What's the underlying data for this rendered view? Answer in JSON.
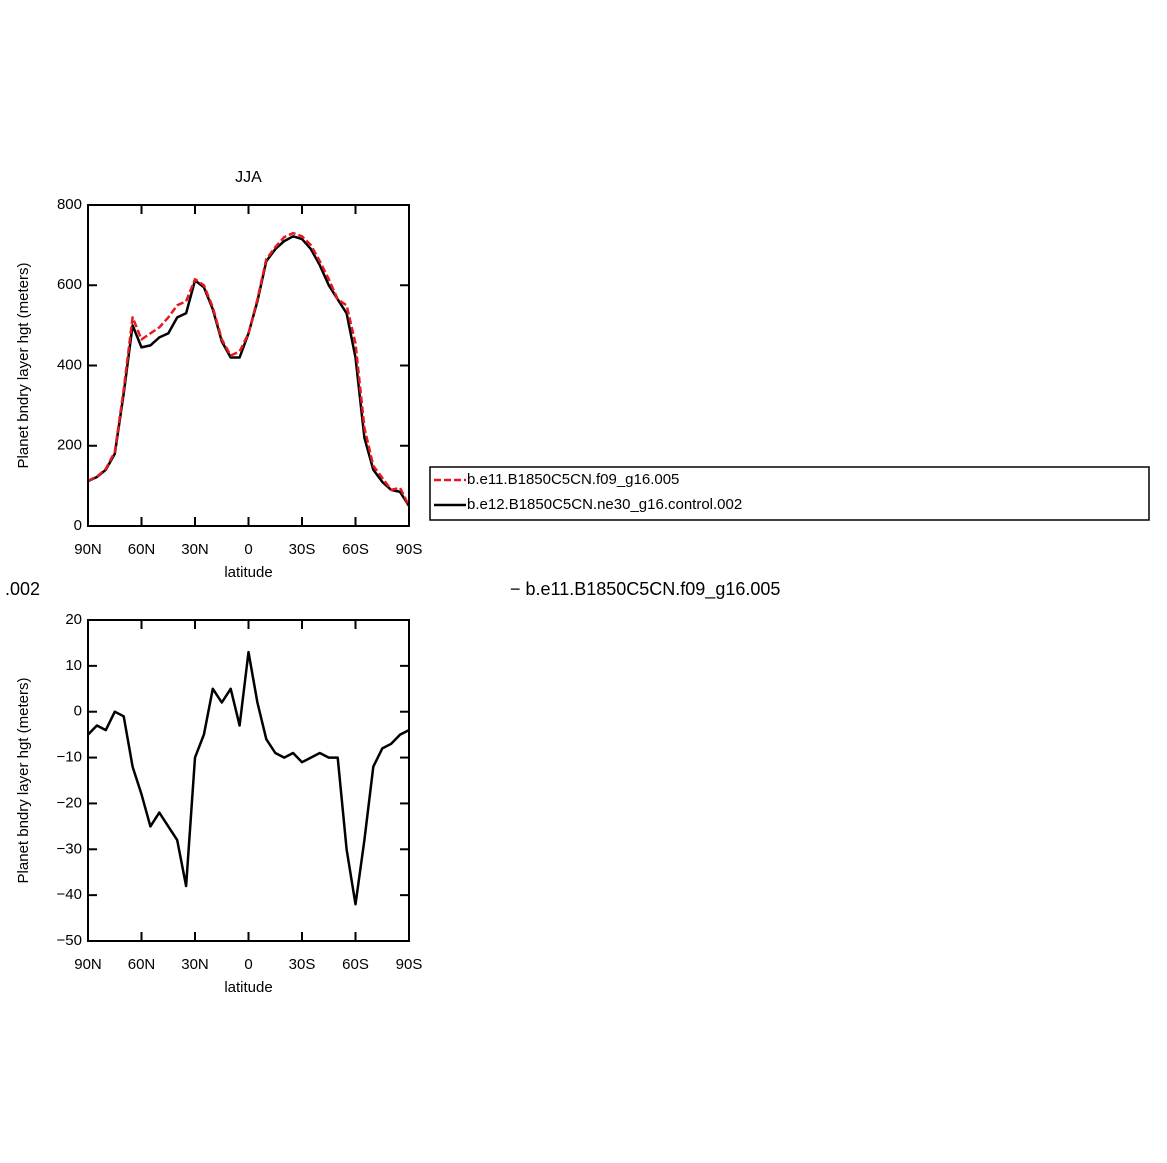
{
  "chart_data": [
    {
      "type": "line",
      "title": "JJA",
      "xlabel": "latitude",
      "ylabel": "Planet bndry layer hgt (meters)",
      "xlim": [
        90,
        -90
      ],
      "xticks": [
        {
          "value": 90,
          "label": "90N"
        },
        {
          "value": 60,
          "label": "60N"
        },
        {
          "value": 30,
          "label": "30N"
        },
        0,
        {
          "value": -30,
          "label": "30S"
        },
        {
          "value": -60,
          "label": "60S"
        },
        {
          "value": -90,
          "label": "90S"
        }
      ],
      "ylim": [
        0,
        800
      ],
      "yticks": [
        0,
        200,
        400,
        600,
        800
      ],
      "x": [
        90,
        85,
        80,
        75,
        70,
        65,
        60,
        55,
        50,
        45,
        40,
        35,
        30,
        25,
        20,
        15,
        10,
        5,
        0,
        -5,
        -10,
        -15,
        -20,
        -25,
        -30,
        -35,
        -40,
        -45,
        -50,
        -55,
        -60,
        -65,
        -70,
        -75,
        -80,
        -85,
        -90
      ],
      "legend": "right",
      "series": [
        {
          "name": "b.e11.B1850C5CN.f09_g16.005",
          "color": "#e8191e",
          "dashed": true,
          "values": [
            113,
            123,
            142,
            185,
            340,
            520,
            465,
            480,
            495,
            520,
            550,
            560,
            615,
            600,
            545,
            465,
            425,
            435,
            480,
            565,
            665,
            695,
            720,
            730,
            722,
            700,
            660,
            615,
            565,
            550,
            455,
            245,
            150,
            120,
            90,
            95,
            50
          ]
        },
        {
          "name": "b.e12.B1850C5CN.ne30_g16.control.002",
          "color": "#000000",
          "dashed": false,
          "values": [
            112,
            122,
            140,
            180,
            330,
            500,
            445,
            450,
            470,
            480,
            520,
            530,
            612,
            595,
            540,
            460,
            420,
            420,
            480,
            560,
            660,
            690,
            710,
            722,
            715,
            690,
            650,
            600,
            565,
            530,
            420,
            220,
            140,
            110,
            90,
            85,
            50
          ]
        }
      ]
    },
    {
      "type": "line",
      "title_left": ".002",
      "title_right": "− b.e11.B1850C5CN.f09_g16.005",
      "xlabel": "latitude",
      "ylabel": "Planet bndry layer hgt (meters)",
      "xlim": [
        90,
        -90
      ],
      "xticks": [
        {
          "value": 90,
          "label": "90N"
        },
        {
          "value": 60,
          "label": "60N"
        },
        {
          "value": 30,
          "label": "30N"
        },
        0,
        {
          "value": -30,
          "label": "30S"
        },
        {
          "value": -60,
          "label": "60S"
        },
        {
          "value": -90,
          "label": "90S"
        }
      ],
      "ylim": [
        -50,
        20
      ],
      "yticks": [
        {
          "value": -50,
          "label": "−50"
        },
        {
          "value": -40,
          "label": "−40"
        },
        {
          "value": -30,
          "label": "−30"
        },
        {
          "value": -20,
          "label": "−20"
        },
        {
          "value": -10,
          "label": "−10"
        },
        0,
        10,
        20
      ],
      "x": [
        90,
        85,
        80,
        75,
        70,
        65,
        60,
        55,
        50,
        45,
        40,
        35,
        30,
        25,
        20,
        15,
        10,
        5,
        0,
        -5,
        -10,
        -15,
        -20,
        -25,
        -30,
        -35,
        -40,
        -45,
        -50,
        -55,
        -60,
        -65,
        -70,
        -75,
        -80,
        -85,
        -90
      ],
      "series": [
        {
          "color": "#000000",
          "dashed": false,
          "values": [
            -5,
            -3,
            -4,
            0,
            -1,
            -12,
            -18,
            -25,
            -22,
            -25,
            -28,
            -38,
            -10,
            -5,
            5,
            2,
            5,
            -3,
            13,
            2,
            -6,
            -9,
            -10,
            -9,
            -11,
            -10,
            -9,
            -10,
            -10,
            -30,
            -42,
            -28,
            -12,
            -8,
            -7,
            -5,
            -4
          ]
        }
      ]
    }
  ]
}
